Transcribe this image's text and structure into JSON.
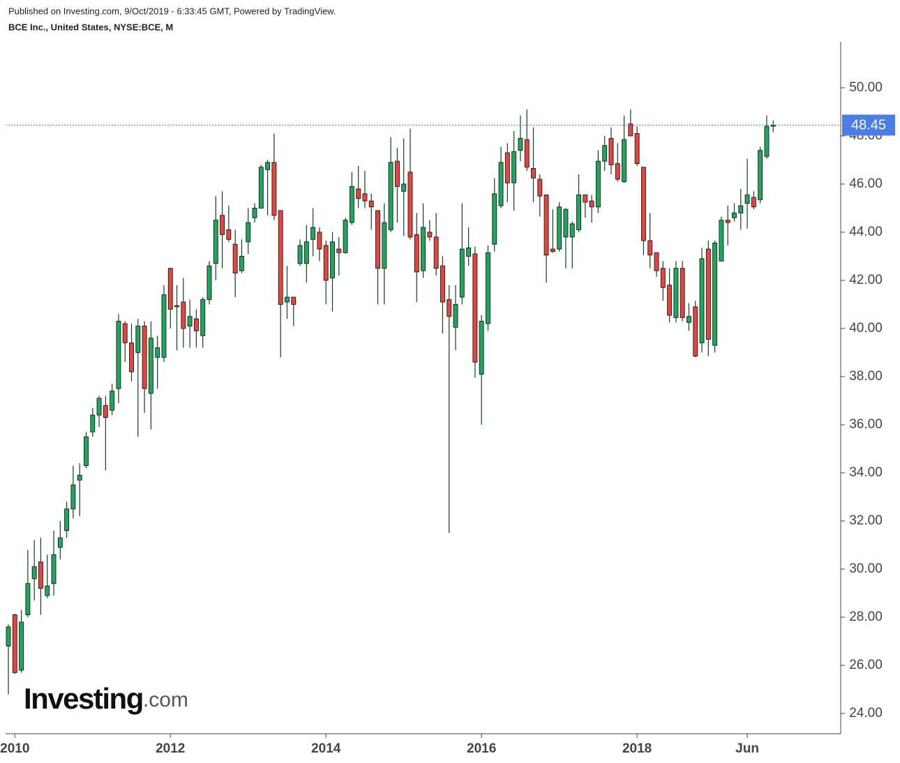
{
  "chart_data": {
    "type": "candlestick",
    "published": "Published on Investing.com, 9/Oct/2019 - 6:33:45 GMT, Powered by TradingView.",
    "title": "BCE Inc., United States, NYSE:BCE, M",
    "watermark": {
      "brand": "Investing",
      "suffix": ".com"
    },
    "up_color": "#1fa85c",
    "down_color": "#e5453d",
    "wick_color": "#0f3f22",
    "last_price": 48.45,
    "last_price_color": "#4a7de6",
    "ylim": [
      23.16,
      51.91
    ],
    "yticks": [
      {
        "value": 24,
        "label": "24.00"
      },
      {
        "value": 26,
        "label": "26.00"
      },
      {
        "value": 28,
        "label": "28.00"
      },
      {
        "value": 30,
        "label": "30.00"
      },
      {
        "value": 32,
        "label": "32.00"
      },
      {
        "value": 34,
        "label": "34.00"
      },
      {
        "value": 36,
        "label": "36.00"
      },
      {
        "value": 38,
        "label": "38.00"
      },
      {
        "value": 40,
        "label": "40.00"
      },
      {
        "value": 42,
        "label": "42.00"
      },
      {
        "value": 44,
        "label": "44.00"
      },
      {
        "value": 46,
        "label": "46.00"
      },
      {
        "value": 48,
        "label": "48.00"
      },
      {
        "value": 50,
        "label": "50.00"
      }
    ],
    "categories": [
      null,
      "2010",
      null,
      null,
      null,
      null,
      null,
      null,
      null,
      null,
      null,
      null,
      null,
      null,
      null,
      null,
      null,
      null,
      null,
      null,
      null,
      null,
      null,
      null,
      null,
      "2012",
      null,
      null,
      null,
      null,
      null,
      null,
      null,
      null,
      null,
      null,
      null,
      null,
      null,
      null,
      null,
      null,
      null,
      null,
      null,
      null,
      null,
      null,
      null,
      "2014",
      null,
      null,
      null,
      null,
      null,
      null,
      null,
      null,
      null,
      null,
      null,
      null,
      null,
      null,
      null,
      null,
      null,
      null,
      null,
      null,
      null,
      null,
      null,
      "2016",
      null,
      null,
      null,
      null,
      null,
      null,
      null,
      null,
      null,
      null,
      null,
      null,
      null,
      null,
      null,
      null,
      null,
      null,
      null,
      null,
      null,
      null,
      null,
      "2018",
      null,
      null,
      null,
      null,
      null,
      null,
      null,
      null,
      null,
      null,
      null,
      null,
      null,
      null,
      null,
      null,
      "Jun",
      null,
      null,
      null,
      null
    ],
    "open": [
      26.8,
      28.1,
      25.8,
      28.1,
      29.6,
      30.3,
      28.9,
      29.4,
      30.9,
      31.6,
      32.5,
      33.7,
      34.3,
      35.7,
      36.4,
      36.8,
      36.6,
      37.5,
      40.2,
      39.4,
      39.0,
      40.1,
      37.3,
      38.8,
      38.8,
      42.5,
      40.95,
      41.1,
      40.1,
      40.4,
      39.7,
      41.2,
      42.7,
      44.7,
      44.1,
      43.5,
      42.4,
      43.6,
      44.6,
      45.0,
      46.6,
      46.9,
      44.9,
      41.1,
      41.3,
      42.7,
      42.7,
      43.7,
      44.0,
      43.45,
      42.1,
      43.3,
      43.15,
      44.4,
      45.8,
      45.6,
      45.3,
      44.9,
      42.5,
      44.1,
      46.95,
      45.7,
      46.5,
      43.9,
      42.4,
      44.0,
      43.8,
      42.6,
      41.2,
      40.05,
      41.3,
      43.0,
      43.1,
      38.1,
      40.2,
      43.5,
      45.1,
      47.3,
      46.05,
      47.4,
      47.85,
      46.65,
      46.2,
      45.55,
      43.3,
      43.3,
      43.8,
      43.8,
      44.1,
      45.55,
      45.3,
      45.05,
      46.95,
      47.9,
      46.85,
      46.1,
      48.5,
      48.1,
      46.7,
      43.65,
      43.15,
      42.5,
      41.8,
      40.45,
      42.5,
      40.25,
      40.9,
      39.4,
      43.3,
      39.3,
      42.8,
      44.5,
      44.6,
      44.8,
      45.2,
      45.45,
      45.35,
      47.15,
      48.4
    ],
    "high": [
      27.7,
      28.15,
      28.3,
      30.8,
      31.2,
      31.3,
      30.6,
      31.6,
      32.0,
      32.8,
      34.3,
      34.4,
      35.7,
      36.7,
      37.2,
      37.2,
      37.7,
      40.6,
      40.3,
      40.2,
      40.4,
      40.3,
      40.3,
      39.7,
      41.8,
      42.5,
      41.8,
      42.1,
      41.2,
      40.8,
      41.3,
      42.8,
      45.5,
      45.7,
      45.1,
      44.1,
      43.7,
      45.0,
      45.2,
      46.8,
      47.0,
      48.1,
      44.9,
      42.6,
      41.3,
      43.7,
      44.3,
      45.0,
      44.2,
      43.65,
      44.0,
      43.8,
      44.6,
      46.5,
      46.75,
      46.55,
      45.6,
      44.9,
      45.2,
      47.95,
      47.5,
      47.9,
      48.3,
      44.8,
      45.2,
      44.5,
      44.8,
      43.0,
      41.8,
      41.8,
      45.2,
      44.2,
      43.4,
      40.55,
      43.45,
      46.25,
      47.55,
      47.7,
      48.2,
      48.85,
      49.1,
      48.35,
      46.4,
      45.55,
      44.95,
      45.25,
      45.0,
      44.45,
      46.4,
      45.55,
      45.55,
      47.4,
      48.0,
      48.35,
      47.7,
      48.85,
      49.1,
      48.4,
      46.7,
      44.8,
      43.15,
      42.8,
      42.5,
      42.8,
      42.8,
      41.05,
      41.15,
      43.35,
      43.65,
      43.65,
      44.65,
      45.1,
      45.2,
      45.8,
      47.05,
      45.7,
      47.55,
      48.85,
      48.65
    ],
    "low": [
      24.8,
      25.65,
      25.7,
      28.0,
      28.7,
      28.1,
      28.8,
      28.9,
      30.4,
      31.3,
      32.1,
      32.2,
      34.2,
      35.5,
      35.9,
      34.1,
      36.4,
      36.9,
      38.6,
      37.8,
      35.5,
      36.5,
      35.8,
      37.5,
      38.6,
      40.0,
      39.1,
      39.2,
      39.2,
      39.2,
      39.2,
      41.0,
      42.0,
      42.5,
      43.6,
      41.3,
      42.3,
      43.1,
      44.4,
      45.0,
      44.7,
      44.5,
      38.8,
      40.4,
      40.1,
      42.6,
      41.9,
      43.0,
      42.8,
      41.0,
      40.7,
      42.2,
      43.1,
      44.3,
      45.0,
      45.0,
      44.1,
      41.0,
      41.0,
      44.0,
      44.4,
      43.85,
      43.7,
      41.1,
      42.1,
      43.65,
      42.2,
      39.8,
      31.5,
      39.1,
      41.0,
      42.6,
      37.95,
      36.0,
      39.9,
      43.2,
      45.0,
      45.25,
      44.9,
      46.95,
      46.55,
      45.25,
      44.65,
      41.9,
      43.15,
      43.2,
      42.5,
      42.5,
      44.0,
      44.6,
      44.4,
      44.8,
      46.55,
      46.4,
      46.1,
      46.05,
      48.0,
      46.75,
      43.05,
      42.5,
      42.15,
      41.15,
      40.25,
      40.25,
      40.3,
      39.9,
      38.8,
      39.0,
      38.85,
      39.0,
      42.8,
      43.45,
      44.45,
      44.1,
      44.15,
      44.95,
      45.2,
      47.05,
      48.15
    ],
    "close": [
      27.6,
      25.7,
      27.8,
      29.4,
      30.1,
      29.2,
      29.3,
      30.6,
      31.3,
      32.5,
      33.5,
      33.9,
      35.5,
      36.4,
      37.1,
      36.3,
      37.4,
      40.3,
      39.4,
      38.2,
      40.1,
      37.5,
      39.6,
      39.2,
      41.4,
      40.8,
      40.9,
      40.0,
      40.5,
      39.9,
      41.2,
      42.6,
      44.5,
      43.9,
      43.7,
      42.3,
      43.0,
      44.4,
      45.0,
      46.7,
      46.9,
      44.7,
      41.0,
      41.3,
      41.0,
      43.45,
      43.6,
      44.2,
      43.3,
      42.0,
      43.6,
      43.15,
      44.5,
      45.9,
      45.4,
      45.3,
      45.05,
      42.5,
      44.4,
      46.9,
      45.9,
      46.0,
      43.8,
      42.35,
      44.2,
      43.8,
      42.5,
      41.1,
      40.5,
      41.0,
      43.3,
      43.35,
      38.6,
      40.3,
      43.15,
      45.6,
      46.9,
      46.05,
      47.35,
      47.9,
      46.7,
      46.25,
      45.5,
      43.05,
      43.2,
      45.05,
      44.95,
      44.35,
      45.55,
      45.25,
      45.05,
      46.95,
      47.6,
      46.8,
      46.2,
      47.85,
      48.0,
      46.85,
      43.65,
      43.05,
      42.4,
      41.7,
      40.55,
      42.5,
      40.45,
      40.5,
      38.85,
      42.9,
      39.55,
      43.55,
      44.5,
      44.4,
      44.8,
      45.1,
      45.55,
      45.05,
      47.4,
      48.4,
      48.45
    ]
  }
}
